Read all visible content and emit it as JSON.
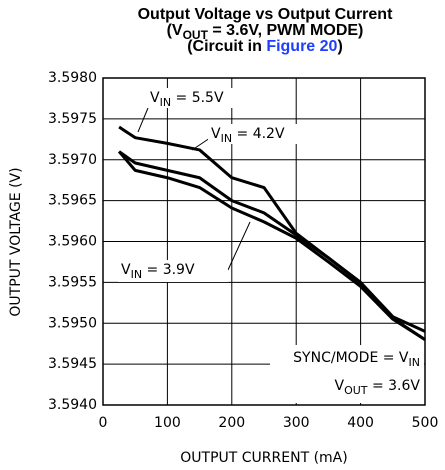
{
  "chart_data": {
    "type": "line",
    "title": "Output Voltage vs Output Current",
    "subtitle": [
      "(V",
      "OUT",
      " = 3.6V, PWM MODE)"
    ],
    "subtitle2": [
      "(Circuit in ",
      "Figure 20",
      ")"
    ],
    "link_color": "#1f3fff",
    "xlabel": "OUTPUT CURRENT (mA)",
    "ylabel": "OUTPUT VOLTAGE (V)",
    "x": [
      25,
      50,
      100,
      150,
      200,
      250,
      300,
      350,
      400,
      450,
      500
    ],
    "series": [
      {
        "color": "#000000",
        "values": [
          3.5974,
          3.59727,
          3.5972,
          3.59712,
          3.59678,
          3.59666,
          3.5961,
          3.5958,
          3.59549,
          3.59506,
          3.5948
        ]
      },
      {
        "color": "#000000",
        "values": [
          3.5971,
          3.59696,
          3.59687,
          3.59678,
          3.5965,
          3.59635,
          3.59608,
          3.5958,
          3.5955,
          3.59508,
          3.5949
        ]
      },
      {
        "color": "#000000",
        "values": [
          3.5971,
          3.59687,
          3.59678,
          3.59666,
          3.59641,
          3.59624,
          3.59604,
          3.59575,
          3.59545,
          3.59505,
          3.5948
        ]
      }
    ],
    "annotations": [
      [
        "V",
        "IN",
        " = 5.5V"
      ],
      [
        "V",
        "IN",
        " = 4.2V"
      ],
      [
        "V",
        "IN",
        " = 3.9V"
      ],
      [
        "SYNC/MODE = V",
        "IN",
        ""
      ],
      [
        "V",
        "OUT",
        " = 3.6V"
      ]
    ],
    "xlim": [
      0,
      500
    ],
    "xticks": [
      0,
      100,
      200,
      300,
      400,
      500
    ],
    "ylim": [
      3.594,
      3.598
    ],
    "yticks": [
      {
        "value": 3.594,
        "label": "3.5940"
      },
      {
        "value": 3.5945,
        "label": "3.5945"
      },
      {
        "value": 3.595,
        "label": "3.5950"
      },
      {
        "value": 3.5955,
        "label": "3.5955"
      },
      {
        "value": 3.596,
        "label": "3.5960"
      },
      {
        "value": 3.5965,
        "label": "3.5965"
      },
      {
        "value": 3.597,
        "label": "3.5970"
      },
      {
        "value": 3.5975,
        "label": "3.5975"
      },
      {
        "value": 3.598,
        "label": "3.5980"
      }
    ],
    "grid": true
  }
}
